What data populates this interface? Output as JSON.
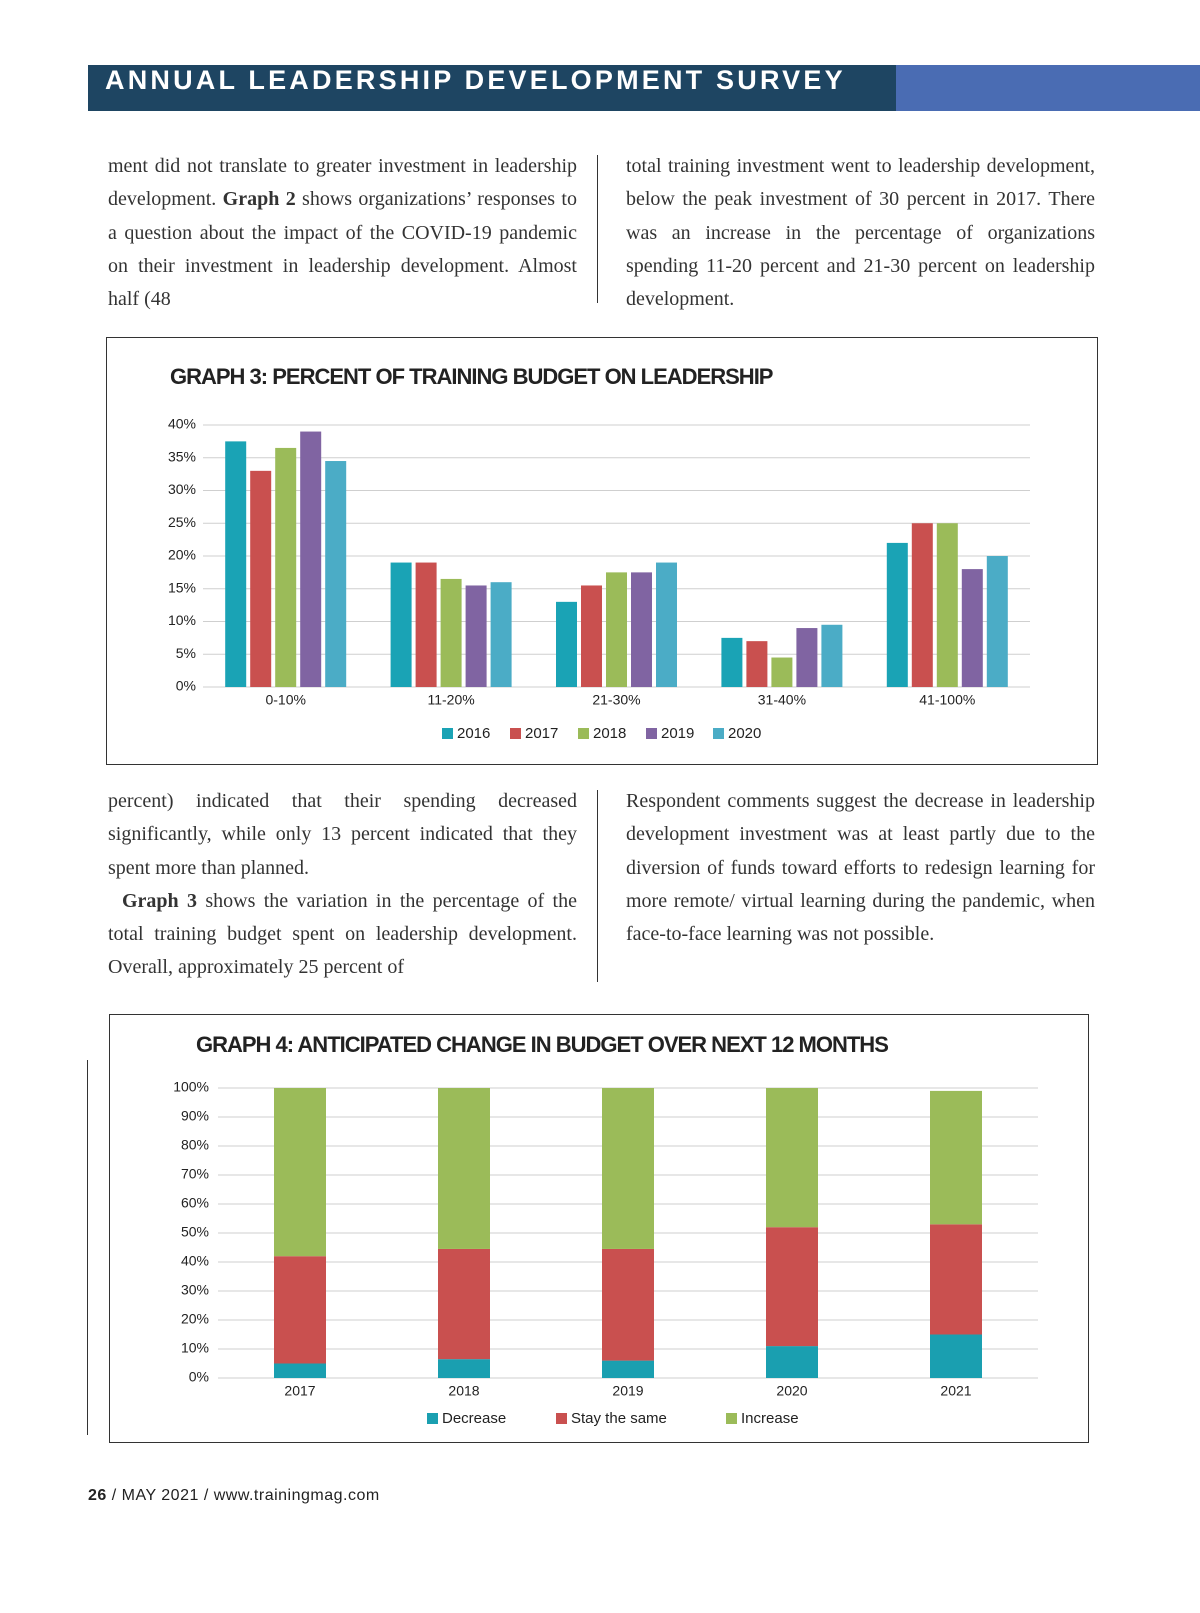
{
  "header": {
    "title": "ANNUAL LEADERSHIP DEVELOPMENT SURVEY"
  },
  "text_top": {
    "left": [
      [
        "ment did not translate to greater investment in leadership development. ",
        {
          "text": "Graph 2",
          "bold": true
        },
        " shows organizations’ responses to a question about the impact of the COVID-19 pandemic on their investment in leadership development. Almost half (48"
      ]
    ],
    "right": [
      [
        "total training investment went to leadership development, below the peak investment of 30 percent in 2017. There was an increase in the percentage of organizations spending 11-20 percent and 21-30 percent on leadership development."
      ]
    ]
  },
  "text_middle": {
    "left": [
      [
        "percent) indicated that their spending decreased significantly, while only 13 percent indicated that they spent more than planned."
      ],
      [
        {
          "text": "Graph 3",
          "bold": true
        },
        " shows the variation in the percentage of the total training budget spent on leadership development. Overall, approximately 25 percent of"
      ]
    ],
    "right": [
      [
        "Respondent comments suggest the decrease in leadership development investment was at least partly due to the diversion of funds toward efforts to redesign learning for more remote/ virtual learning during the pandemic, when face-to-face learning was not possible."
      ]
    ]
  },
  "charts": [
    {
      "type": "bar",
      "title": "GRAPH 3: PERCENT OF TRAINING BUDGET ON LEADERSHIP",
      "categories": [
        "0-10%",
        "11-20%",
        "21-30%",
        "31-40%",
        "41-100%"
      ],
      "series": [
        {
          "name": "2016",
          "color": "#1aa3b5",
          "values": [
            37.5,
            19,
            13,
            7.5,
            22
          ]
        },
        {
          "name": "2017",
          "color": "#c9504f",
          "values": [
            33,
            19,
            15.5,
            7,
            25
          ]
        },
        {
          "name": "2018",
          "color": "#9bbb59",
          "values": [
            36.5,
            16.5,
            17.5,
            4.5,
            25
          ]
        },
        {
          "name": "2019",
          "color": "#8064a2",
          "values": [
            39,
            15.5,
            17.5,
            9,
            18
          ]
        },
        {
          "name": "2020",
          "color": "#4bacc6",
          "values": [
            34.5,
            16,
            19,
            9.5,
            20
          ]
        }
      ],
      "ylim": [
        0,
        40
      ],
      "yticks": [
        {
          "value": 0,
          "label": "0%"
        },
        {
          "value": 5,
          "label": "5%"
        },
        {
          "value": 10,
          "label": "10%"
        },
        {
          "value": 15,
          "label": "15%"
        },
        {
          "value": 20,
          "label": "20%"
        },
        {
          "value": 25,
          "label": "25%"
        },
        {
          "value": 30,
          "label": "30%"
        },
        {
          "value": 35,
          "label": "35%"
        },
        {
          "value": 40,
          "label": "40%"
        }
      ],
      "grid": true
    },
    {
      "type": "stacked_bar",
      "title": "GRAPH 4: ANTICIPATED CHANGE IN BUDGET OVER NEXT 12 MONTHS",
      "categories": [
        "2017",
        "2018",
        "2019",
        "2020",
        "2021"
      ],
      "series": [
        {
          "name": "Decrease",
          "color": "#1a9fb0",
          "values": [
            5,
            6.5,
            6,
            11,
            15
          ]
        },
        {
          "name": "Stay the same",
          "color": "#c9504f",
          "values": [
            37,
            38,
            38.5,
            41,
            38
          ]
        },
        {
          "name": "Increase",
          "color": "#9bbb59",
          "values": [
            58,
            55.5,
            55.5,
            48,
            46
          ]
        }
      ],
      "ylim": [
        0,
        100
      ],
      "yticks": [
        {
          "value": 0,
          "label": "0%"
        },
        {
          "value": 10,
          "label": "10%"
        },
        {
          "value": 20,
          "label": "20%"
        },
        {
          "value": 30,
          "label": "30%"
        },
        {
          "value": 40,
          "label": "40%"
        },
        {
          "value": 50,
          "label": "50%"
        },
        {
          "value": 60,
          "label": "60%"
        },
        {
          "value": 70,
          "label": "70%"
        },
        {
          "value": 80,
          "label": "80%"
        },
        {
          "value": 90,
          "label": "90%"
        },
        {
          "value": 100,
          "label": "100%"
        }
      ],
      "grid": true
    }
  ],
  "footer": {
    "page": "26",
    "text": " / MAY 2021 / www.trainingmag.com"
  }
}
